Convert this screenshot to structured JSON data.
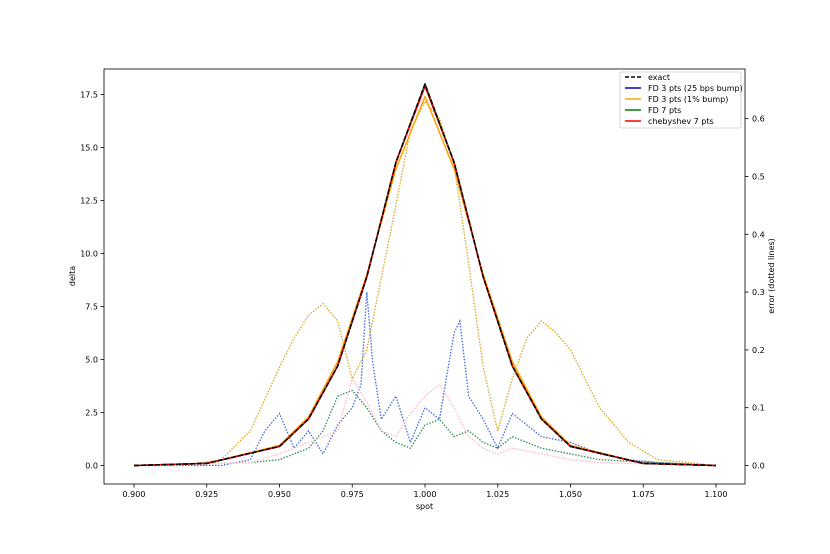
{
  "chart_data": {
    "type": "line",
    "xlabel": "spot",
    "ylabel": "delta",
    "y2label": "error (dotted lines)",
    "xlim": [
      0.9,
      1.1
    ],
    "ylim": [
      0,
      18
    ],
    "y2lim": [
      0,
      0.66
    ],
    "xticks": [
      "0.900",
      "0.925",
      "0.950",
      "0.975",
      "1.000",
      "1.025",
      "1.050",
      "1.075",
      "1.100"
    ],
    "yticks": [
      "0.0",
      "2.5",
      "5.0",
      "7.5",
      "10.0",
      "12.5",
      "15.0",
      "17.5"
    ],
    "y2ticks": [
      "0.0",
      "0.1",
      "0.2",
      "0.3",
      "0.4",
      "0.5",
      "0.6"
    ],
    "legend_position": "top-right",
    "grid": false,
    "series": [
      {
        "name": "exact",
        "color": "#000000",
        "dash": "dashed",
        "x": [
          0.9,
          0.925,
          0.95,
          0.96,
          0.97,
          0.98,
          0.99,
          1.0,
          1.01,
          1.02,
          1.03,
          1.04,
          1.05,
          1.075,
          1.1
        ],
        "y": [
          0.0,
          0.1,
          0.9,
          2.2,
          4.7,
          8.9,
          14.3,
          18.0,
          14.3,
          8.9,
          4.7,
          2.2,
          0.9,
          0.1,
          0.0
        ]
      },
      {
        "name": "FD 3 pts (25 bps bump)",
        "color": "#0000cc",
        "dash": "solid",
        "x": [
          0.9,
          0.925,
          0.95,
          0.96,
          0.97,
          0.98,
          0.99,
          1.0,
          1.01,
          1.02,
          1.03,
          1.04,
          1.05,
          1.075,
          1.1
        ],
        "y": [
          0.0,
          0.1,
          0.9,
          2.2,
          4.7,
          8.9,
          14.3,
          17.9,
          14.3,
          8.9,
          4.7,
          2.2,
          0.9,
          0.1,
          0.0
        ]
      },
      {
        "name": "FD 3 pts (1% bump)",
        "color": "#ffa500",
        "dash": "solid",
        "x": [
          0.9,
          0.925,
          0.95,
          0.96,
          0.97,
          0.98,
          0.99,
          1.0,
          1.01,
          1.02,
          1.03,
          1.04,
          1.05,
          1.075,
          1.1
        ],
        "y": [
          0.0,
          0.1,
          0.95,
          2.3,
          4.9,
          9.0,
          14.0,
          17.4,
          14.0,
          9.0,
          4.9,
          2.3,
          0.95,
          0.1,
          0.0
        ]
      },
      {
        "name": "FD 7 pts",
        "color": "#008000",
        "dash": "solid",
        "x": [
          0.9,
          0.925,
          0.95,
          0.96,
          0.97,
          0.98,
          0.99,
          1.0,
          1.01,
          1.02,
          1.03,
          1.04,
          1.05,
          1.075,
          1.1
        ],
        "y": [
          0.0,
          0.1,
          0.9,
          2.2,
          4.7,
          8.9,
          14.3,
          18.0,
          14.3,
          8.9,
          4.7,
          2.2,
          0.9,
          0.1,
          0.0
        ]
      },
      {
        "name": "chebyshev 7 pts",
        "color": "#ff0000",
        "dash": "solid",
        "x": [
          0.9,
          0.925,
          0.95,
          0.96,
          0.97,
          0.98,
          0.99,
          1.0,
          1.01,
          1.02,
          1.03,
          1.04,
          1.05,
          1.075,
          1.1
        ],
        "y": [
          0.0,
          0.1,
          0.9,
          2.2,
          4.7,
          8.9,
          14.3,
          17.9,
          14.3,
          8.9,
          4.7,
          2.2,
          0.9,
          0.1,
          0.0
        ]
      }
    ],
    "error_series": [
      {
        "color": "#4169e1",
        "axis": "right",
        "x": [
          0.9,
          0.93,
          0.94,
          0.945,
          0.95,
          0.955,
          0.96,
          0.965,
          0.97,
          0.975,
          0.978,
          0.98,
          0.982,
          0.985,
          0.99,
          0.995,
          1.0,
          1.005,
          1.01,
          1.012,
          1.015,
          1.02,
          1.025,
          1.03,
          1.04,
          1.05,
          1.06,
          1.07,
          1.08,
          1.1
        ],
        "y": [
          0.0,
          0.0,
          0.01,
          0.06,
          0.09,
          0.03,
          0.06,
          0.02,
          0.07,
          0.1,
          0.14,
          0.3,
          0.18,
          0.08,
          0.12,
          0.04,
          0.1,
          0.08,
          0.23,
          0.25,
          0.12,
          0.08,
          0.03,
          0.09,
          0.05,
          0.04,
          0.02,
          0.01,
          0.005,
          0.0
        ]
      },
      {
        "color": "#daa520",
        "axis": "right",
        "x": [
          0.9,
          0.92,
          0.93,
          0.94,
          0.95,
          0.955,
          0.96,
          0.965,
          0.97,
          0.975,
          0.98,
          0.99,
          0.995,
          1.0,
          1.005,
          1.01,
          1.015,
          1.02,
          1.025,
          1.03,
          1.035,
          1.04,
          1.045,
          1.05,
          1.06,
          1.07,
          1.08,
          1.1
        ],
        "y": [
          0.0,
          0.003,
          0.01,
          0.06,
          0.17,
          0.22,
          0.26,
          0.28,
          0.25,
          0.15,
          0.2,
          0.45,
          0.58,
          0.63,
          0.6,
          0.52,
          0.35,
          0.17,
          0.06,
          0.15,
          0.22,
          0.25,
          0.23,
          0.2,
          0.1,
          0.04,
          0.01,
          0.0
        ]
      },
      {
        "color": "#2e8b57",
        "axis": "right",
        "x": [
          0.9,
          0.94,
          0.95,
          0.96,
          0.965,
          0.97,
          0.975,
          0.98,
          0.985,
          0.99,
          0.995,
          1.0,
          1.005,
          1.01,
          1.015,
          1.02,
          1.025,
          1.03,
          1.04,
          1.05,
          1.06,
          1.1
        ],
        "y": [
          0.0,
          0.005,
          0.01,
          0.03,
          0.06,
          0.12,
          0.13,
          0.1,
          0.06,
          0.04,
          0.03,
          0.07,
          0.08,
          0.05,
          0.06,
          0.04,
          0.03,
          0.05,
          0.03,
          0.02,
          0.01,
          0.0
        ]
      },
      {
        "color": "#ffb6c1",
        "axis": "right",
        "x": [
          0.9,
          0.94,
          0.95,
          0.96,
          0.97,
          0.975,
          0.98,
          0.985,
          0.99,
          0.995,
          1.0,
          1.005,
          1.01,
          1.015,
          1.02,
          1.025,
          1.03,
          1.04,
          1.05,
          1.06,
          1.1
        ],
        "y": [
          0.0,
          0.005,
          0.02,
          0.04,
          0.06,
          0.15,
          0.11,
          0.06,
          0.05,
          0.09,
          0.12,
          0.14,
          0.1,
          0.05,
          0.03,
          0.02,
          0.03,
          0.02,
          0.01,
          0.005,
          0.0
        ]
      }
    ]
  }
}
